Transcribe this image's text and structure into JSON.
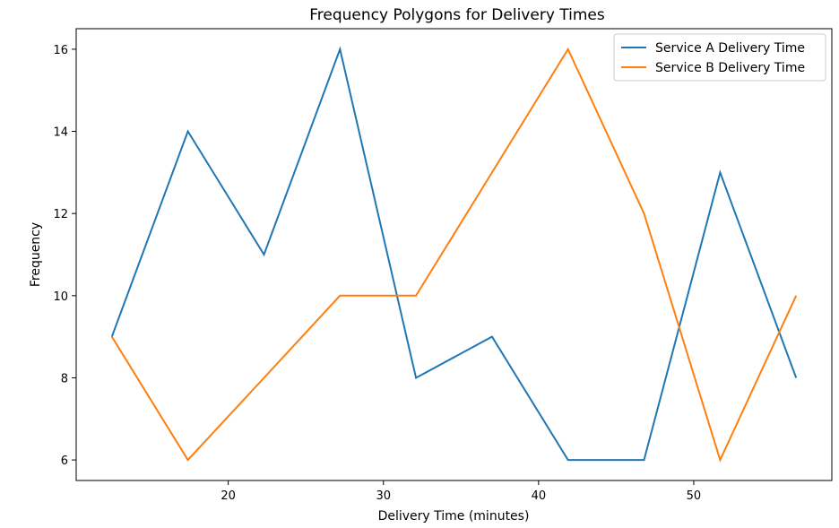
{
  "chart_data": {
    "type": "line",
    "title": "Frequency Polygons for Delivery Times",
    "xlabel": "Delivery Time (minutes)",
    "ylabel": "Frequency",
    "xlim": [
      10.2,
      58.9
    ],
    "ylim": [
      5.5,
      16.5
    ],
    "x_ticks": [
      20,
      30,
      40,
      50
    ],
    "y_ticks": [
      6,
      8,
      10,
      12,
      14,
      16
    ],
    "grid": false,
    "legend_position": "top-right",
    "x": [
      12.5,
      17.4,
      22.3,
      27.2,
      32.1,
      37.0,
      41.9,
      46.8,
      51.7,
      56.6
    ],
    "series": [
      {
        "name": "Service A Delivery Time",
        "color": "#1f77b4",
        "values": [
          9,
          14,
          11,
          16,
          8,
          9,
          6,
          6,
          13,
          8
        ]
      },
      {
        "name": "Service B Delivery Time",
        "color": "#ff7f0e",
        "values": [
          9,
          6,
          8,
          10,
          10,
          13,
          16,
          12,
          6,
          10
        ]
      }
    ]
  }
}
